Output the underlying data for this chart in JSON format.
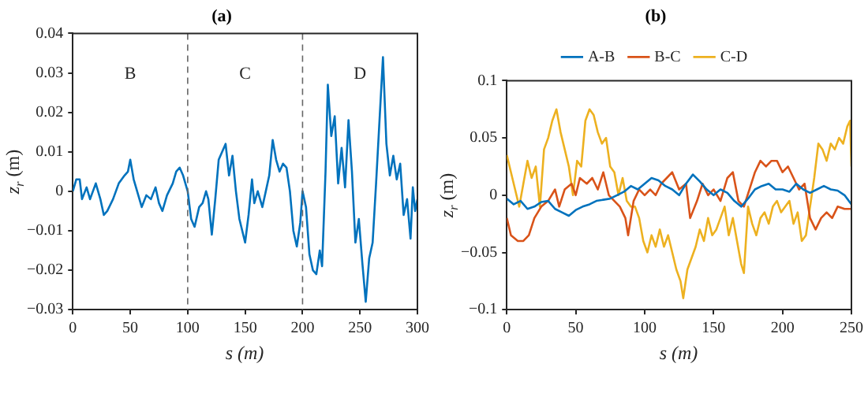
{
  "chart_data": [
    {
      "type": "line",
      "title": "(a)",
      "xlabel": "s (m)",
      "ylabel": "z$_{r}$ (m)",
      "color": "#0072bd",
      "x": [
        0,
        3,
        6,
        8,
        12,
        15,
        20,
        24,
        27,
        30,
        35,
        40,
        45,
        48,
        50,
        53,
        57,
        60,
        64,
        68,
        72,
        75,
        78,
        82,
        87,
        90,
        93,
        96,
        100,
        103,
        106,
        110,
        113,
        116,
        118,
        121,
        124,
        127,
        130,
        133,
        136,
        139,
        142,
        145,
        150,
        153,
        156,
        158,
        161,
        165,
        168,
        171,
        174,
        177,
        180,
        183,
        186,
        189,
        192,
        195,
        198,
        200,
        203,
        206,
        209,
        212,
        215,
        217,
        220,
        222,
        225,
        228,
        231,
        234,
        237,
        240,
        243,
        246,
        249,
        252,
        255,
        258,
        261,
        264,
        267,
        270,
        273,
        276,
        279,
        282,
        285,
        288,
        291,
        294,
        296,
        298,
        300
      ],
      "values": [
        0,
        0.003,
        0.003,
        -0.002,
        0.001,
        -0.002,
        0.002,
        -0.002,
        -0.006,
        -0.005,
        -0.002,
        0.002,
        0.004,
        0.005,
        0.008,
        0.003,
        -0.001,
        -0.004,
        -0.001,
        -0.002,
        0.001,
        -0.003,
        -0.005,
        -0.001,
        0.002,
        0.005,
        0.006,
        0.004,
        0,
        -0.007,
        -0.009,
        -0.004,
        -0.003,
        0,
        -0.002,
        -0.011,
        -0.002,
        0.008,
        0.01,
        0.012,
        0.004,
        0.009,
        0,
        -0.007,
        -0.013,
        -0.006,
        0.003,
        -0.003,
        0,
        -0.004,
        0,
        0.004,
        0.013,
        0.008,
        0.005,
        0.007,
        0.006,
        0,
        -0.01,
        -0.014,
        -0.008,
        0,
        -0.004,
        -0.016,
        -0.02,
        -0.021,
        -0.015,
        -0.019,
        0.005,
        0.027,
        0.014,
        0.019,
        0.002,
        0.011,
        0.001,
        0.018,
        0.005,
        -0.013,
        -0.007,
        -0.018,
        -0.028,
        -0.017,
        -0.013,
        0.002,
        0.018,
        0.034,
        0.012,
        0.004,
        0.009,
        0.003,
        0.007,
        -0.006,
        -0.002,
        -0.012,
        0.001,
        -0.005,
        -0.002
      ],
      "xlim": [
        0,
        300
      ],
      "xticks": [
        0,
        50,
        100,
        150,
        200,
        250,
        300
      ],
      "ylim": [
        -0.03,
        0.04
      ],
      "yticks": [
        -0.03,
        -0.02,
        -0.01,
        0,
        0.01,
        0.02,
        0.03,
        0.04
      ],
      "ref_lines": [
        {
          "axis": "x",
          "value": 100,
          "color": "#666666",
          "line_style": "dashed"
        },
        {
          "axis": "x",
          "value": 200,
          "color": "#666666",
          "line_style": "dashed"
        }
      ],
      "annotations": [
        "B",
        "C",
        "D"
      ],
      "grid": false,
      "legend": false,
      "line_style": "solid",
      "marker": "none"
    },
    {
      "type": "line",
      "title": "(b)",
      "xlabel": "s (m)",
      "ylabel": "z$_{r}$ (m)",
      "xlim": [
        0,
        250
      ],
      "xticks": [
        0,
        50,
        100,
        150,
        200,
        250
      ],
      "ylim": [
        -0.1,
        0.1
      ],
      "yticks": [
        -0.1,
        -0.05,
        0,
        0.05,
        0.1
      ],
      "grid": false,
      "legend": "top",
      "line_style": "solid",
      "marker": "none",
      "series": [
        {
          "name": "A-B",
          "color": "#0072bd",
          "x": [
            0,
            5,
            10,
            15,
            20,
            25,
            30,
            35,
            40,
            45,
            50,
            55,
            60,
            65,
            70,
            75,
            80,
            85,
            90,
            95,
            100,
            105,
            110,
            115,
            120,
            125,
            130,
            135,
            140,
            145,
            150,
            155,
            160,
            165,
            170,
            175,
            180,
            185,
            190,
            195,
            200,
            205,
            210,
            215,
            220,
            225,
            230,
            235,
            240,
            245,
            250
          ],
          "values": [
            -0.003,
            -0.008,
            -0.005,
            -0.012,
            -0.01,
            -0.006,
            -0.005,
            -0.012,
            -0.015,
            -0.018,
            -0.013,
            -0.01,
            -0.008,
            -0.005,
            -0.004,
            -0.003,
            0,
            0.003,
            0.008,
            0.005,
            0.01,
            0.015,
            0.013,
            0.008,
            0.005,
            0,
            0.01,
            0.018,
            0.012,
            0.005,
            0,
            0.005,
            0.002,
            -0.005,
            -0.01,
            -0.003,
            0.005,
            0.008,
            0.01,
            0.005,
            0.005,
            0.003,
            0.01,
            0.005,
            0.002,
            0.005,
            0.008,
            0.005,
            0.004,
            0,
            -0.008
          ]
        },
        {
          "name": "B-C",
          "color": "#d95319",
          "x": [
            0,
            3,
            8,
            12,
            16,
            20,
            25,
            30,
            35,
            38,
            42,
            47,
            50,
            53,
            58,
            62,
            66,
            70,
            74,
            78,
            82,
            86,
            88,
            92,
            96,
            100,
            104,
            108,
            112,
            116,
            120,
            125,
            130,
            133,
            138,
            142,
            146,
            150,
            155,
            160,
            164,
            168,
            172,
            176,
            180,
            184,
            188,
            192,
            196,
            200,
            204,
            208,
            212,
            216,
            220,
            224,
            228,
            232,
            236,
            240,
            245,
            250
          ],
          "values": [
            -0.02,
            -0.035,
            -0.04,
            -0.04,
            -0.035,
            -0.02,
            -0.01,
            -0.005,
            0.005,
            -0.01,
            0.005,
            0.01,
            0,
            0.015,
            0.01,
            0.015,
            0.005,
            0.02,
            0,
            -0.005,
            -0.01,
            -0.02,
            -0.035,
            -0.005,
            0.005,
            0,
            0.005,
            0,
            0.01,
            0.015,
            0.02,
            0.005,
            0.01,
            -0.02,
            -0.005,
            0.01,
            0,
            0.005,
            -0.005,
            0.015,
            0.02,
            -0.005,
            -0.01,
            0.005,
            0.02,
            0.03,
            0.025,
            0.03,
            0.03,
            0.02,
            0.025,
            0.015,
            0.005,
            0.01,
            -0.02,
            -0.03,
            -0.02,
            -0.015,
            -0.02,
            -0.01,
            -0.012,
            -0.012
          ]
        },
        {
          "name": "C-D",
          "color": "#edb120",
          "x": [
            0,
            3,
            6,
            9,
            12,
            15,
            18,
            21,
            24,
            27,
            30,
            33,
            36,
            39,
            42,
            45,
            48,
            51,
            54,
            57,
            60,
            63,
            66,
            69,
            72,
            75,
            78,
            81,
            84,
            87,
            90,
            93,
            96,
            99,
            102,
            105,
            108,
            111,
            114,
            117,
            120,
            123,
            126,
            128,
            131,
            134,
            137,
            140,
            143,
            146,
            149,
            152,
            155,
            158,
            161,
            164,
            167,
            170,
            172,
            175,
            178,
            181,
            184,
            187,
            190,
            193,
            196,
            199,
            202,
            205,
            208,
            211,
            214,
            217,
            220,
            223,
            226,
            229,
            232,
            235,
            238,
            241,
            244,
            247,
            249,
            250
          ],
          "values": [
            0.035,
            0.02,
            0.005,
            -0.01,
            0.01,
            0.03,
            0.015,
            0.025,
            -0.01,
            0.04,
            0.05,
            0.065,
            0.075,
            0.055,
            0.04,
            0.025,
            0,
            0.03,
            0.025,
            0.065,
            0.075,
            0.07,
            0.055,
            0.045,
            0.05,
            0.025,
            0.02,
            0,
            0.015,
            -0.005,
            -0.01,
            -0.01,
            -0.02,
            -0.04,
            -0.05,
            -0.035,
            -0.045,
            -0.03,
            -0.045,
            -0.035,
            -0.05,
            -0.065,
            -0.075,
            -0.09,
            -0.065,
            -0.055,
            -0.045,
            -0.03,
            -0.04,
            -0.02,
            -0.035,
            -0.03,
            -0.02,
            -0.01,
            -0.035,
            -0.02,
            -0.04,
            -0.06,
            -0.068,
            -0.01,
            -0.025,
            -0.035,
            -0.02,
            -0.015,
            -0.025,
            -0.01,
            -0.005,
            -0.015,
            -0.01,
            -0.005,
            -0.025,
            -0.015,
            -0.04,
            -0.035,
            -0.01,
            0.015,
            0.045,
            0.04,
            0.03,
            0.045,
            0.04,
            0.05,
            0.045,
            0.06,
            0.065,
            0.025
          ]
        }
      ]
    }
  ]
}
